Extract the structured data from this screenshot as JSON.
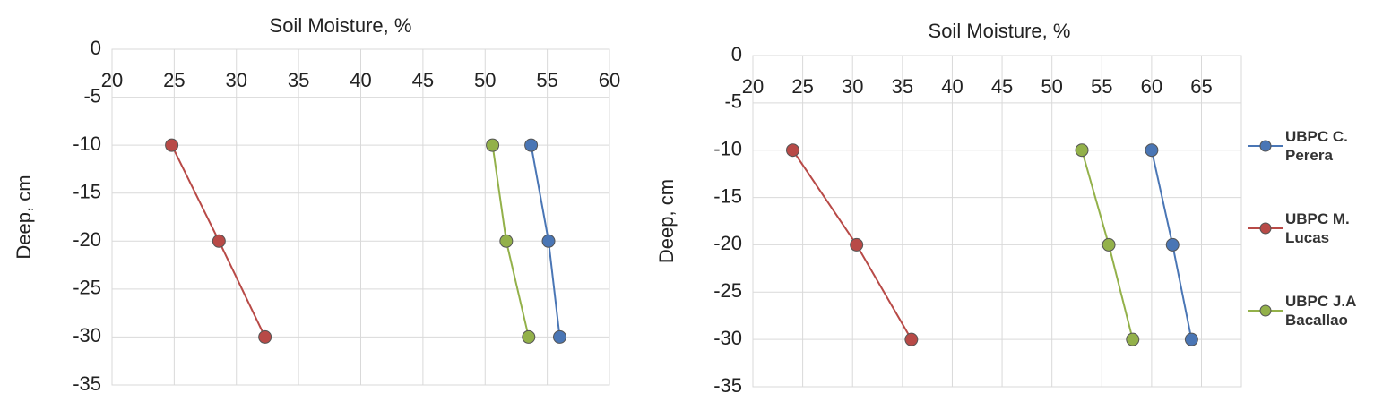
{
  "chart_data": [
    {
      "type": "line",
      "title": "Soil Moisture, %",
      "ylabel": "Deep, cm",
      "xlim": [
        20,
        60
      ],
      "xticks": [
        20,
        25,
        30,
        35,
        40,
        45,
        50,
        55,
        60
      ],
      "ylim": [
        -35,
        0
      ],
      "yticks": [
        0,
        -5,
        -10,
        -15,
        -20,
        -25,
        -30,
        -35
      ],
      "grid": true,
      "series": [
        {
          "color": "#4a76b5",
          "x": [
            53.7,
            55.1,
            56
          ],
          "values": [
            -10,
            -20,
            -30
          ]
        },
        {
          "color": "#b84a47",
          "x": [
            24.8,
            28.6,
            32.3
          ],
          "values": [
            -10,
            -20,
            -30
          ]
        },
        {
          "color": "#93b14a",
          "x": [
            50.6,
            51.7,
            53.5
          ],
          "values": [
            -10,
            -20,
            -30
          ]
        }
      ]
    },
    {
      "type": "line",
      "title": "Soil Moisture, %",
      "ylabel": "Deep, cm",
      "xlim": [
        20,
        69
      ],
      "xticks": [
        20,
        25,
        30,
        35,
        40,
        45,
        50,
        55,
        60,
        65
      ],
      "ylim": [
        -35,
        0
      ],
      "yticks": [
        0,
        -5,
        -10,
        -15,
        -20,
        -25,
        -30,
        -35
      ],
      "grid": true,
      "legend": "right",
      "series": [
        {
          "name": "UBPC C. Perera",
          "color": "#4a76b5",
          "x": [
            60,
            62.1,
            64
          ],
          "values": [
            -10,
            -20,
            -30
          ]
        },
        {
          "name": "UBPC M. Lucas",
          "color": "#b84a47",
          "x": [
            24,
            30.4,
            35.9
          ],
          "values": [
            -10,
            -20,
            -30
          ]
        },
        {
          "name": "UBPC J.A Bacallao",
          "color": "#93b14a",
          "x": [
            53,
            55.7,
            58.1
          ],
          "values": [
            -10,
            -20,
            -30
          ]
        }
      ]
    }
  ]
}
